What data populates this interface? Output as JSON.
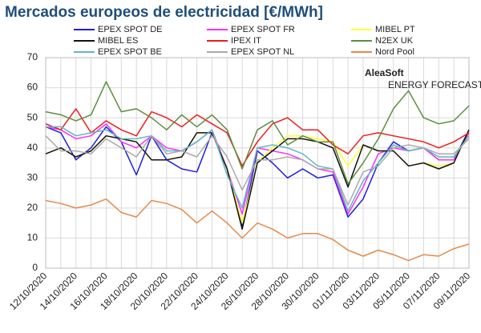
{
  "chart_data": {
    "type": "line",
    "title": "Mercados europeos de electricidad [€/MWh]",
    "logo": {
      "name": "AleaSoft",
      "tagline": "ENERGY FORECASTING"
    },
    "categories": [
      "12/10/2020",
      null,
      "14/10/2020",
      null,
      "16/10/2020",
      null,
      "18/10/2020",
      null,
      "20/10/2020",
      null,
      "22/10/2020",
      null,
      "24/10/2020",
      null,
      "26/10/2020",
      null,
      "28/10/2020",
      null,
      "30/10/2020",
      null,
      "01/11/2020",
      null,
      "03/11/2020",
      null,
      "05/11/2020",
      null,
      "07/11/2020",
      null,
      "09/11/2020"
    ],
    "ylim": [
      0,
      70
    ],
    "yticks": [
      0,
      10,
      20,
      30,
      40,
      50,
      60,
      70
    ],
    "grid": true,
    "legend": "top",
    "series": [
      {
        "name": "EPEX SPOT DE",
        "color": "#1f1fd6",
        "values": [
          47,
          45,
          36,
          40,
          47,
          42,
          31,
          44,
          36,
          33,
          32,
          45,
          33,
          14,
          39,
          35,
          30,
          33,
          30,
          31,
          17,
          23,
          35,
          42,
          39,
          40,
          36,
          36,
          46
        ]
      },
      {
        "name": "EPEX SPOT FR",
        "color": "#ff2cff",
        "values": [
          47,
          46,
          43,
          44,
          48,
          42,
          40,
          44,
          40,
          39,
          42,
          46,
          33,
          18,
          40,
          39,
          38,
          36,
          33,
          32,
          18,
          27,
          38,
          40,
          39,
          40,
          36,
          36,
          45
        ]
      },
      {
        "name": "MIBEL PT",
        "color": "#ffff33",
        "values": [
          38,
          40,
          37,
          39,
          44,
          43,
          42,
          36,
          36,
          37,
          45,
          45,
          33,
          15,
          35,
          40,
          44,
          44,
          43,
          42,
          34,
          41,
          39,
          39,
          34,
          35,
          34,
          35,
          46
        ]
      },
      {
        "name": "MIBEL ES",
        "color": "#111111",
        "values": [
          38,
          40,
          37,
          39,
          44,
          43,
          42,
          36,
          36,
          37,
          45,
          45,
          33,
          13,
          35,
          39,
          43,
          43,
          42,
          40,
          27,
          41,
          39,
          39,
          34,
          35,
          33,
          35,
          46
        ]
      },
      {
        "name": "IPEX IT",
        "color": "#ee1c1c",
        "values": [
          48,
          46,
          53,
          45,
          49,
          46,
          44,
          52,
          50,
          47,
          51,
          48,
          45,
          34,
          42,
          48,
          50,
          46,
          46,
          41,
          38,
          44,
          45,
          44,
          43,
          42,
          40,
          42,
          45
        ]
      },
      {
        "name": "N2EX UK",
        "color": "#5e8e3e",
        "values": [
          52,
          51,
          49,
          51,
          62,
          52,
          53,
          50,
          46,
          51,
          47,
          51,
          46,
          33,
          46,
          49,
          41,
          44,
          42,
          42,
          28,
          35,
          43,
          53,
          59,
          50,
          48,
          49,
          54
        ]
      },
      {
        "name": "EPEX SPOT BE",
        "color": "#5fb7c4",
        "values": [
          47,
          47,
          44,
          45,
          46,
          43,
          43,
          44,
          39,
          39,
          42,
          46,
          31,
          20,
          40,
          41,
          40,
          38,
          34,
          33,
          19,
          29,
          35,
          41,
          39,
          40,
          37,
          37,
          44
        ]
      },
      {
        "name": "EPEX SPOT NL",
        "color": "#aaaaaa",
        "values": [
          44,
          39,
          39,
          38,
          43,
          40,
          37,
          44,
          38,
          39,
          37,
          44,
          37,
          26,
          36,
          36,
          37,
          36,
          33,
          33,
          21,
          32,
          34,
          40,
          41,
          40,
          38,
          38,
          43
        ]
      },
      {
        "name": "Nord Pool",
        "color": "#e58a4a",
        "values": [
          22.5,
          21.5,
          20,
          21,
          23,
          18.5,
          17,
          22.5,
          21.5,
          19.5,
          15,
          19,
          15,
          10,
          15,
          13,
          10,
          11.5,
          11.5,
          9.5,
          6,
          4,
          6,
          4.5,
          2.5,
          4.5,
          4,
          6.5,
          8
        ]
      }
    ]
  }
}
